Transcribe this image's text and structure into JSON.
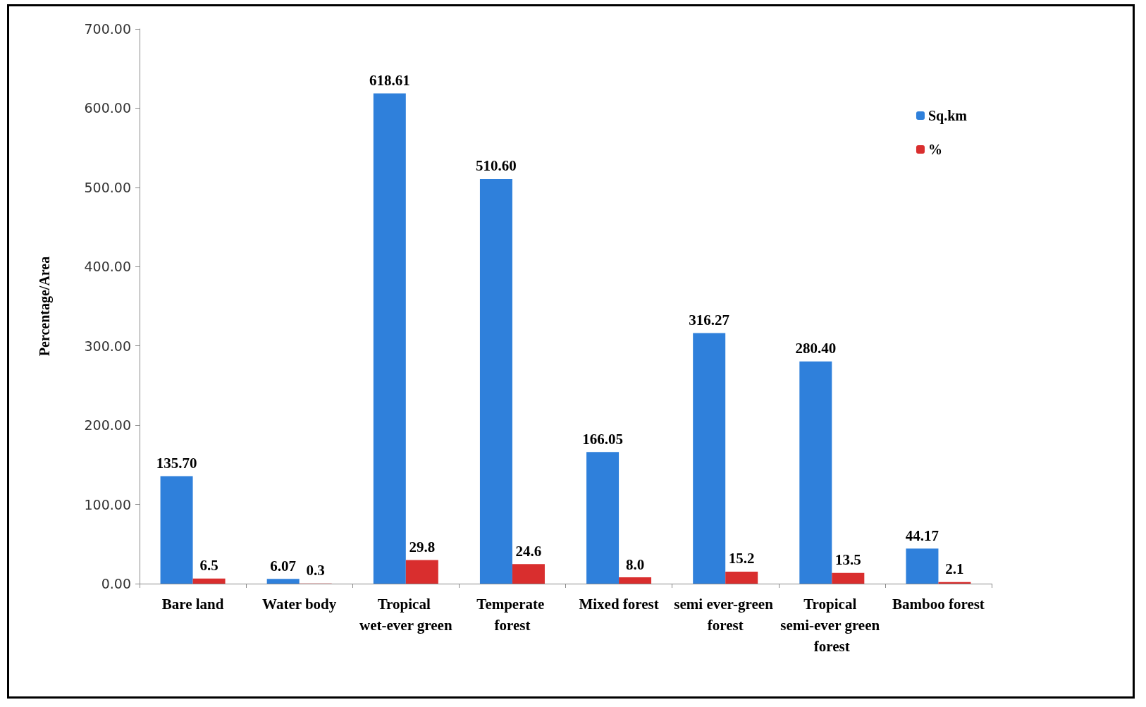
{
  "chart_data": {
    "type": "bar",
    "ylabel": "Percentage/Area",
    "categories": [
      "Bare land",
      "Water body",
      "Tropical wet-ever green",
      "Temperate forest",
      "Mixed forest",
      "semi ever-green forest",
      "Tropical semi-ever green forest",
      "Bamboo forest"
    ],
    "series": [
      {
        "name": "Sq.km",
        "color": "#2f80db",
        "values": [
          135.7,
          6.07,
          618.61,
          510.6,
          166.05,
          316.27,
          280.4,
          44.17
        ],
        "value_labels": [
          "135.70",
          "6.07",
          "618.61",
          "510.60",
          "166.05",
          "316.27",
          "280.40",
          "44.17"
        ]
      },
      {
        "name": "%",
        "color": "#d92e2e",
        "values": [
          6.5,
          0.3,
          29.8,
          24.6,
          8.0,
          15.2,
          13.5,
          2.1
        ],
        "value_labels": [
          "6.5",
          "0.3",
          "29.8",
          "24.6",
          "8.0",
          "15.2",
          "13.5",
          "2.1"
        ]
      }
    ],
    "ylim": [
      0,
      700
    ],
    "yticks": [
      {
        "value": 0,
        "label": "0.00"
      },
      {
        "value": 100,
        "label": "100.00"
      },
      {
        "value": 200,
        "label": "200.00"
      },
      {
        "value": 300,
        "label": "300.00"
      },
      {
        "value": 400,
        "label": "400.00"
      },
      {
        "value": 500,
        "label": "500.00"
      },
      {
        "value": 600,
        "label": "600.00"
      },
      {
        "value": 700,
        "label": "700.00"
      }
    ],
    "grid": false,
    "legend": "top right"
  }
}
